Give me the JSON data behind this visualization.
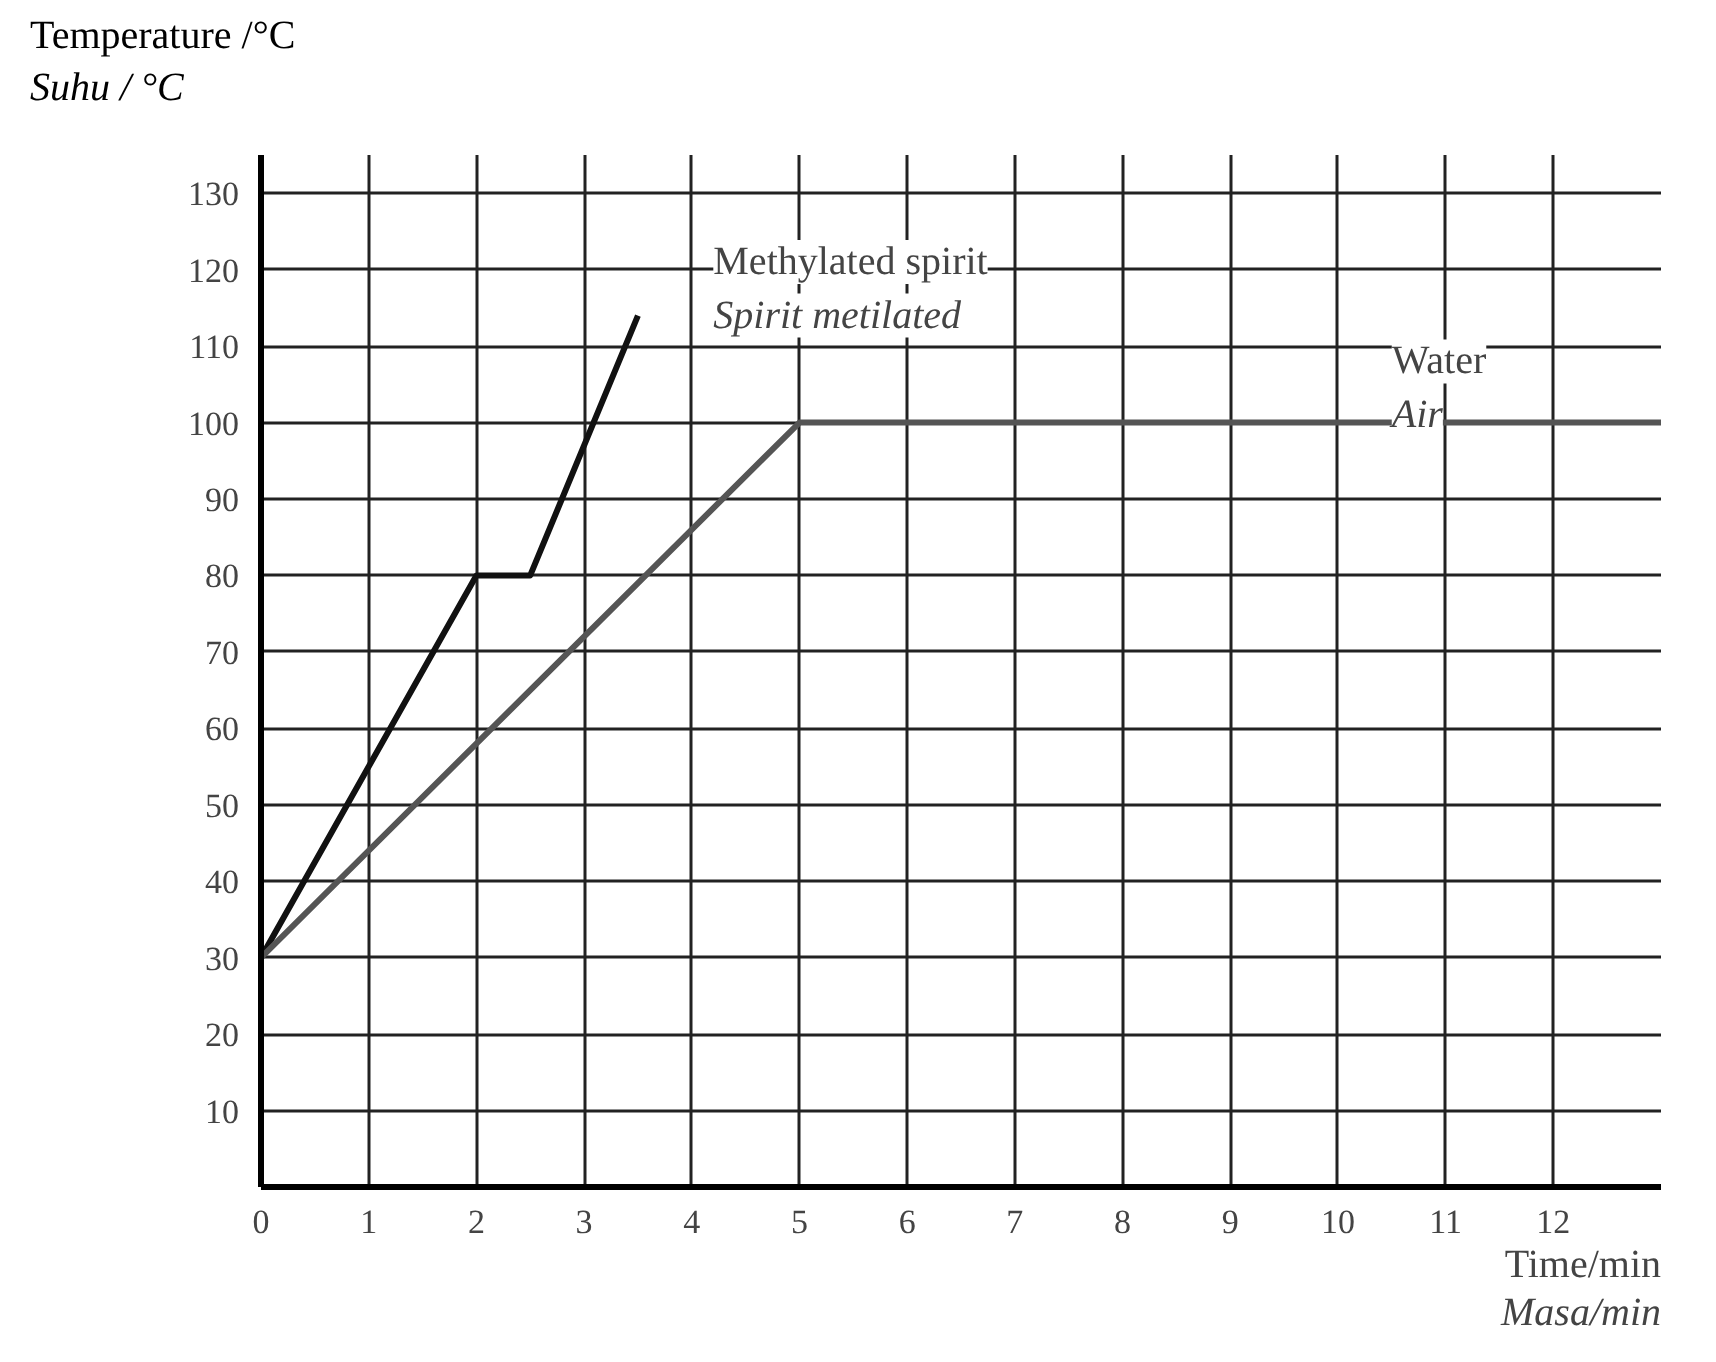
{
  "chart_data": {
    "type": "line",
    "xlabel": "Time/min\nMasa/min",
    "ylabel": "Temperature /°C\nSuhu / °C",
    "series": [
      {
        "name": "Methylated spirit\nSpirit metilated",
        "color": "#111111",
        "x": [
          0,
          2,
          2.5,
          3.5
        ],
        "values": [
          30,
          80,
          80,
          114
        ]
      },
      {
        "name": "Water\nAir",
        "color": "#555555",
        "x": [
          0,
          5,
          13
        ],
        "values": [
          30,
          100,
          100
        ]
      }
    ],
    "xlim": [
      0,
      13
    ],
    "ylim": [
      0,
      135
    ],
    "xticks": [
      0,
      1,
      2,
      3,
      4,
      5,
      6,
      7,
      8,
      9,
      10,
      11,
      12
    ],
    "yticks": [
      10,
      20,
      30,
      40,
      50,
      60,
      70,
      80,
      90,
      100,
      110,
      120,
      130
    ],
    "grid": true,
    "marker": "none",
    "line_style": "solid"
  }
}
